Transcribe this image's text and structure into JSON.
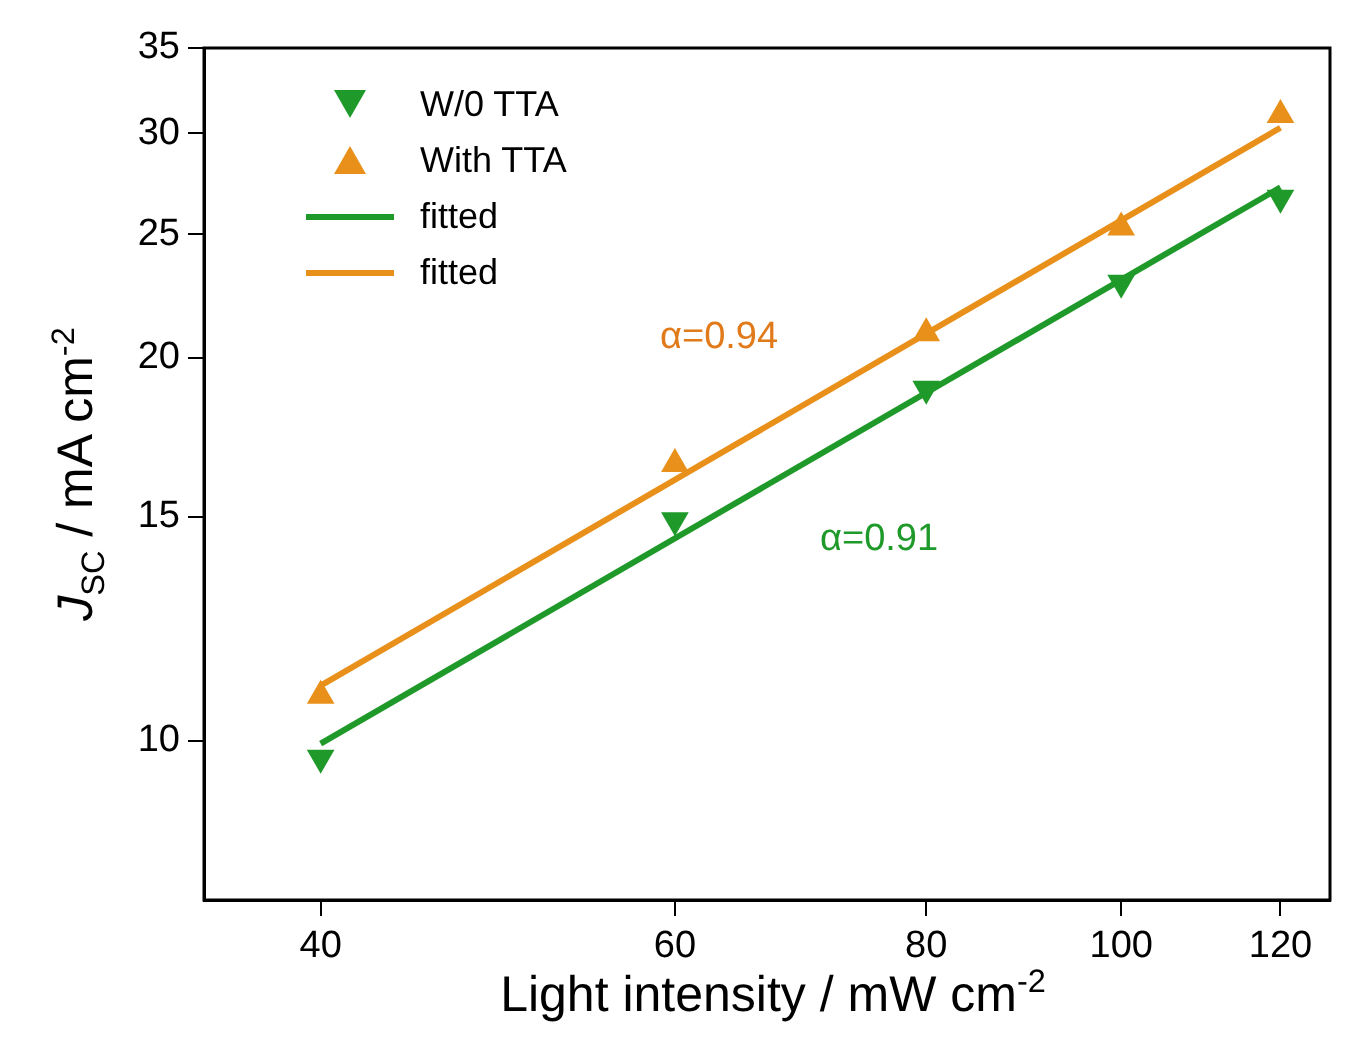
{
  "chart_data": {
    "type": "scatter",
    "xlabel": "Light intensity / mW cm$^{-2}$",
    "ylabel": "J$_{SC}$ / mA cm$^{-2}$",
    "log": "xy",
    "xlim": [
      35,
      127
    ],
    "xticks": [
      40,
      60,
      80,
      100,
      120
    ],
    "ylim": [
      7.5,
      35
    ],
    "yticks": [
      10,
      15,
      20,
      25,
      30,
      35
    ],
    "grid": false,
    "legend": "top left",
    "series": [
      {
        "name": "W/0 TTA",
        "color": "#1f9a2a",
        "marker": "triangle_down",
        "x": [
          40,
          60,
          80,
          100,
          120
        ],
        "values": [
          9.7,
          14.9,
          18.9,
          22.9,
          26.7
        ]
      },
      {
        "name": "With TTA",
        "color": "#e8901a",
        "marker": "triangle",
        "x": [
          40,
          60,
          80,
          100,
          120
        ],
        "values": [
          10.85,
          16.5,
          20.9,
          25.3,
          31.0
        ]
      },
      {
        "name": "fitted",
        "type": "line",
        "color": "#1f9a2a",
        "marker": "none",
        "line_style": "solid",
        "x": [
          40,
          120
        ],
        "values": [
          9.95,
          27.2
        ]
      },
      {
        "name": "fitted",
        "type": "line",
        "color": "#e8901a",
        "marker": "none",
        "line_style": "solid",
        "x": [
          40,
          120
        ],
        "values": [
          11.05,
          30.3
        ]
      }
    ],
    "annotations": [
      "α=0.94",
      "α=0.91"
    ]
  }
}
